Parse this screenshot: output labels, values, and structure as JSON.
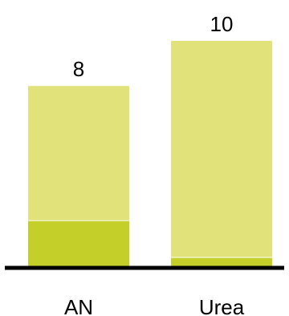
{
  "chart_data": {
    "type": "bar",
    "stacked": true,
    "categories": [
      "AN",
      "Urea"
    ],
    "totals": [
      8,
      10
    ],
    "series": [
      {
        "values": [
          2.04,
          0.41
        ],
        "color": "#c4cf2a"
      },
      {
        "values": [
          5.96,
          9.59
        ],
        "color": "#e1e37a"
      }
    ],
    "ylim": [
      0,
      10
    ],
    "grid": false,
    "legend": "none",
    "colors": {
      "separator": "#ffffff",
      "axis": "#000000",
      "text": "#000000"
    }
  }
}
